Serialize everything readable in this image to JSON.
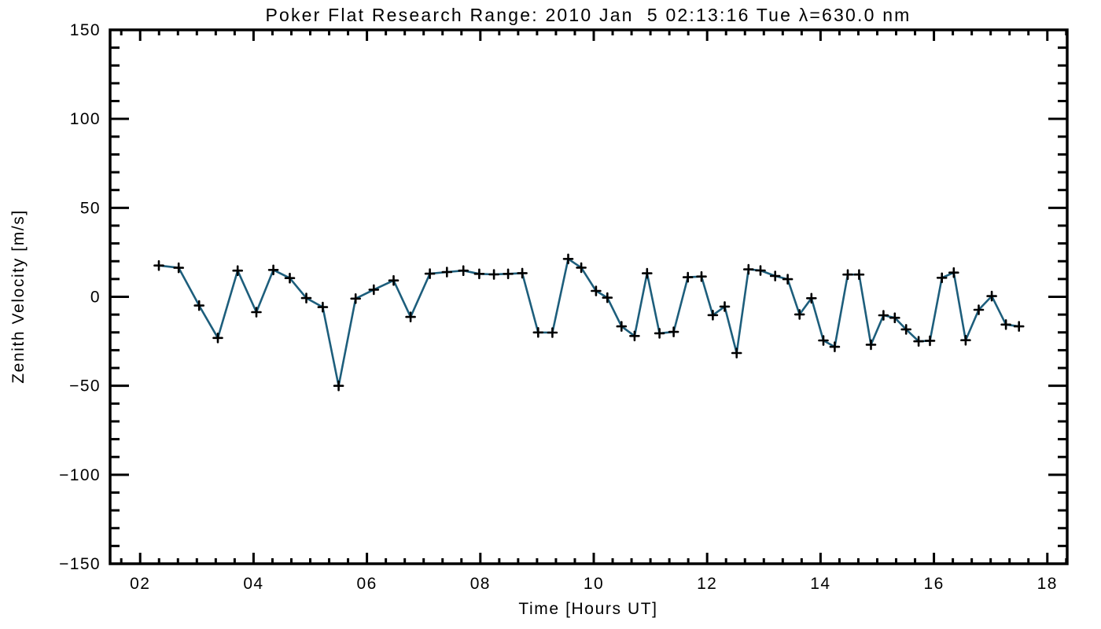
{
  "colors": {
    "background": "#FFFFFF",
    "axis": "#000000",
    "line": "#1D5E7C",
    "marker": "#000000"
  },
  "chart_data": {
    "type": "line",
    "title": "Poker Flat Research Range: 2010 Jan  5 02:13:16 Tue λ=630.0 nm",
    "xlabel": "Time [Hours UT]",
    "ylabel": "Zenith Velocity [m/s]",
    "xlim": [
      1.47,
      18.35
    ],
    "ylim": [
      -150,
      150
    ],
    "grid": false,
    "x_major_ticks": [
      2,
      4,
      6,
      8,
      10,
      12,
      14,
      16,
      18
    ],
    "x_tick_labels": [
      "02",
      "04",
      "06",
      "08",
      "10",
      "12",
      "14",
      "16",
      "18"
    ],
    "x_minor_step_hours": 0.3333,
    "y_major_ticks": [
      150,
      100,
      50,
      0,
      -50,
      -100,
      -150
    ],
    "y_tick_labels": [
      "150",
      "100",
      "50",
      "0",
      "−50",
      "−100",
      "−150"
    ],
    "y_minor_step": 10,
    "series": [
      {
        "name": "zenith velocity",
        "color": "#1D5E7C",
        "marker": "plus",
        "marker_color": "#000000",
        "points": [
          [
            2.33,
            17.6
          ],
          [
            2.68,
            16.3
          ],
          [
            3.04,
            -4.9
          ],
          [
            3.37,
            -23.1
          ],
          [
            3.72,
            14.7
          ],
          [
            4.05,
            -8.6
          ],
          [
            4.35,
            15.1
          ],
          [
            4.64,
            10.5
          ],
          [
            4.93,
            -0.7
          ],
          [
            5.22,
            -5.8
          ],
          [
            5.5,
            -50.0
          ],
          [
            5.8,
            -1.0
          ],
          [
            6.12,
            4.0
          ],
          [
            6.47,
            9.2
          ],
          [
            6.77,
            -11.3
          ],
          [
            7.11,
            13.0
          ],
          [
            7.41,
            13.9
          ],
          [
            7.7,
            14.7
          ],
          [
            7.98,
            12.9
          ],
          [
            8.24,
            12.6
          ],
          [
            8.49,
            12.9
          ],
          [
            8.74,
            13.3
          ],
          [
            9.02,
            -20.0
          ],
          [
            9.27,
            -20.1
          ],
          [
            9.55,
            21.3
          ],
          [
            9.78,
            16.4
          ],
          [
            10.04,
            3.3
          ],
          [
            10.24,
            -0.5
          ],
          [
            10.49,
            -16.6
          ],
          [
            10.72,
            -22.0
          ],
          [
            10.94,
            13.2
          ],
          [
            11.16,
            -20.5
          ],
          [
            11.41,
            -19.7
          ],
          [
            11.66,
            11.0
          ],
          [
            11.9,
            11.4
          ],
          [
            12.1,
            -10.3
          ],
          [
            12.31,
            -5.5
          ],
          [
            12.52,
            -31.6
          ],
          [
            12.73,
            15.4
          ],
          [
            12.94,
            14.8
          ],
          [
            13.2,
            11.7
          ],
          [
            13.42,
            9.9
          ],
          [
            13.63,
            -9.9
          ],
          [
            13.84,
            -0.8
          ],
          [
            14.05,
            -24.5
          ],
          [
            14.25,
            -28.1
          ],
          [
            14.48,
            12.5
          ],
          [
            14.68,
            12.5
          ],
          [
            14.89,
            -26.9
          ],
          [
            15.11,
            -10.4
          ],
          [
            15.31,
            -11.8
          ],
          [
            15.51,
            -18.3
          ],
          [
            15.73,
            -25.0
          ],
          [
            15.93,
            -24.7
          ],
          [
            16.14,
            10.7
          ],
          [
            16.35,
            13.6
          ],
          [
            16.56,
            -24.4
          ],
          [
            16.79,
            -7.3
          ],
          [
            17.02,
            0.4
          ],
          [
            17.27,
            -15.6
          ],
          [
            17.5,
            -16.6
          ]
        ]
      }
    ]
  }
}
